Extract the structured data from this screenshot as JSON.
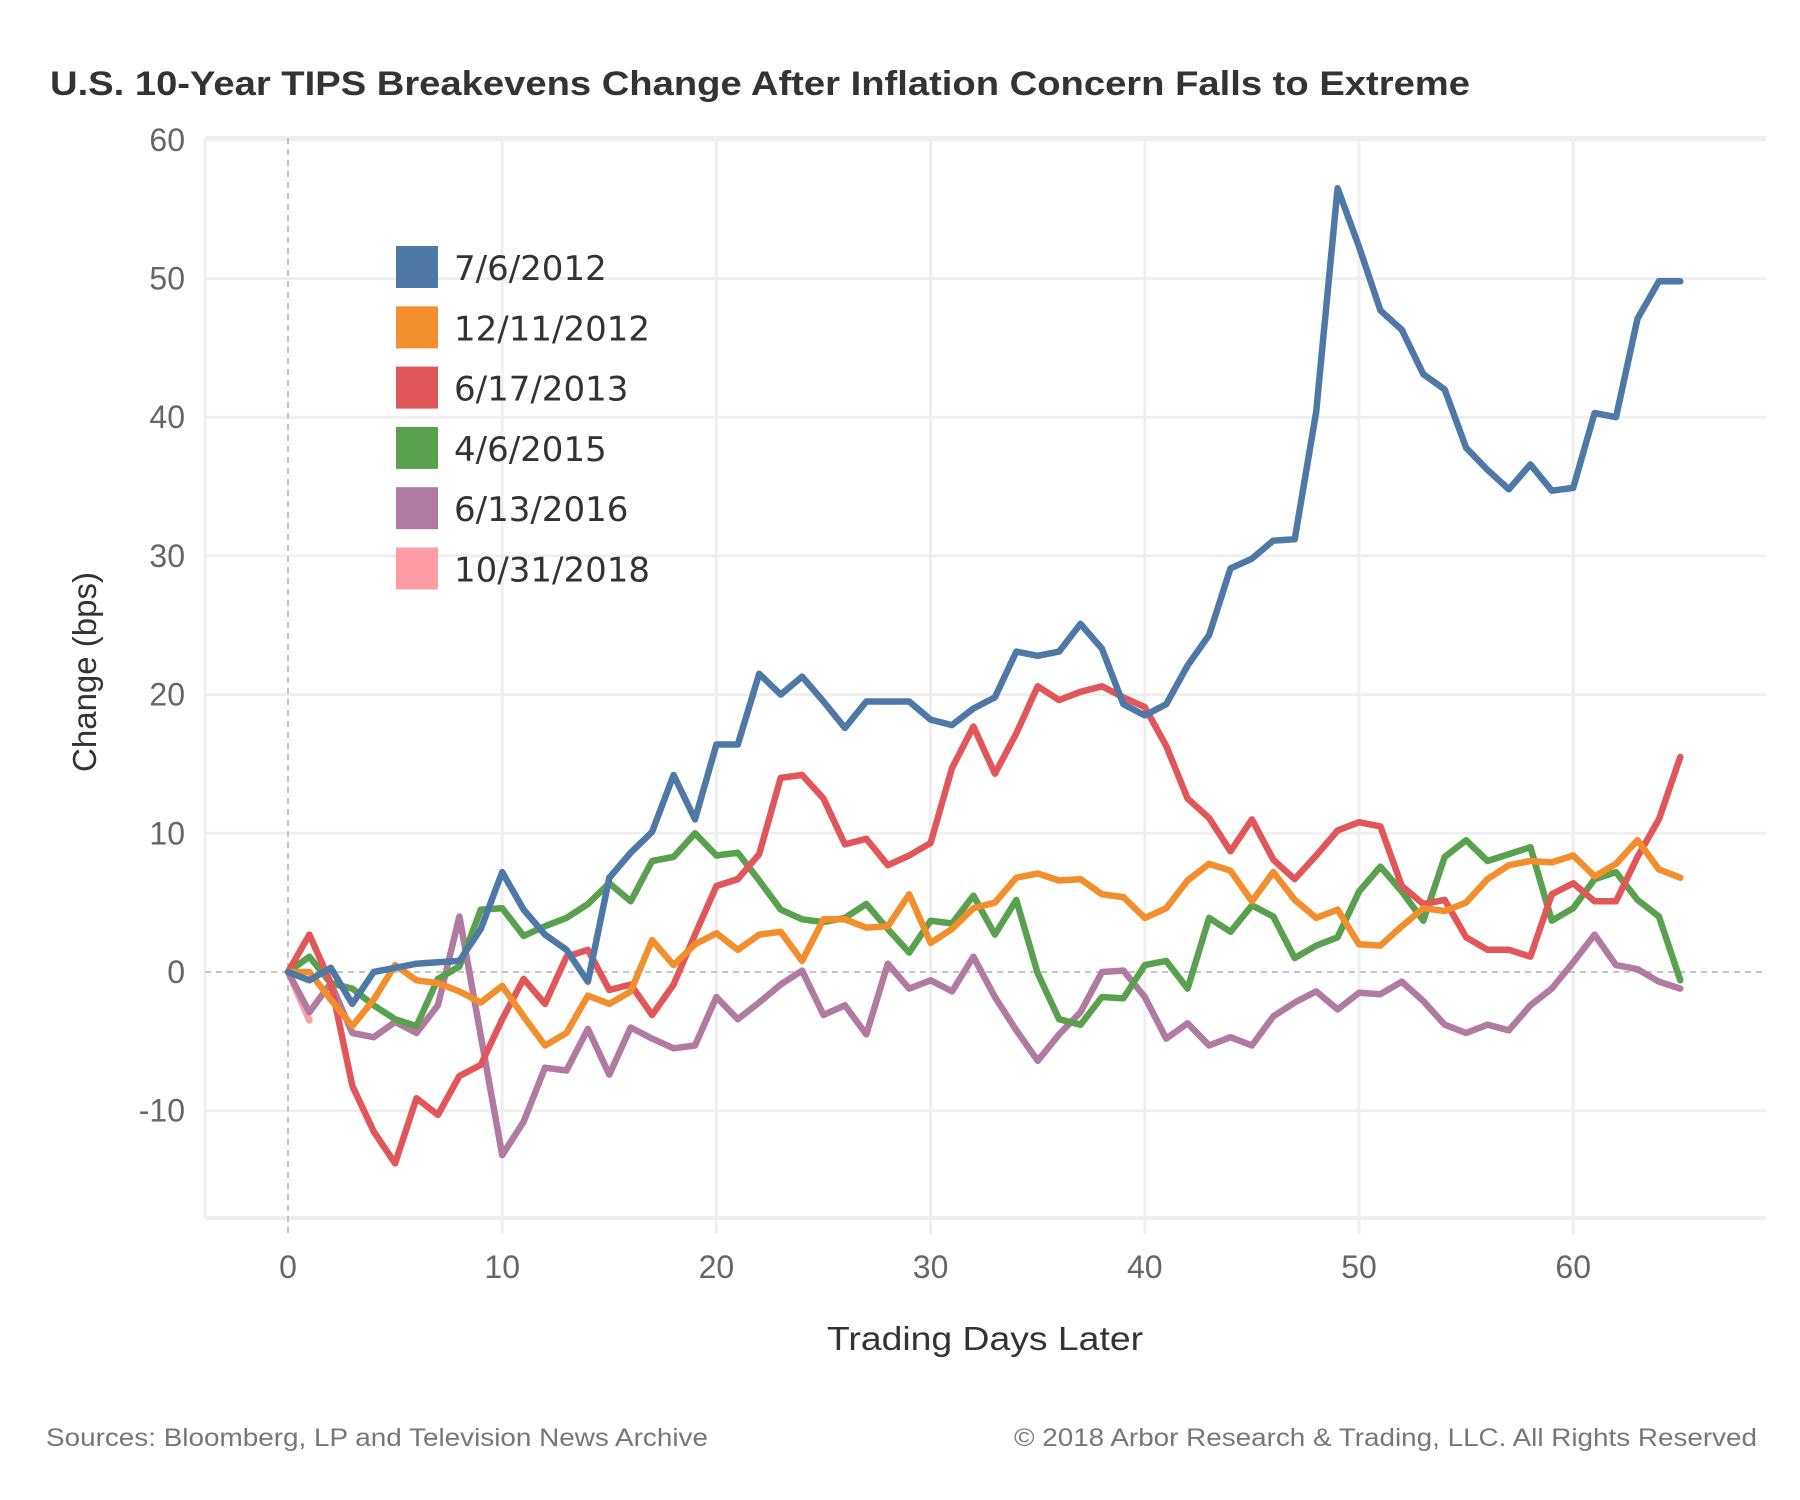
{
  "chart_data": {
    "type": "line",
    "title": "U.S. 10-Year TIPS Breakevens Change After Inflation Concern Falls to Extreme",
    "xlabel": "Trading Days Later",
    "ylabel": "Change (bps)",
    "xlim": [
      -4,
      69
    ],
    "ylim": [
      -17.7,
      60.2
    ],
    "xticks": [
      0,
      10,
      20,
      30,
      40,
      50,
      60
    ],
    "yticks": [
      -10,
      0,
      10,
      20,
      30,
      40,
      50,
      60
    ],
    "xtick_labels": [
      "0",
      "10",
      "20",
      "30",
      "40",
      "50",
      "60"
    ],
    "ytick_labels": [
      "-10",
      "0",
      "10",
      "20",
      "30",
      "40",
      "50",
      "60"
    ],
    "grid": true,
    "reference_lines": {
      "x": 0,
      "y": 0,
      "style": "dashed"
    },
    "legend_position": "top-left",
    "series": [
      {
        "name": "7/6/2012",
        "color": "#4e79a7",
        "x_start": 0,
        "values": [
          0,
          -0.6,
          0.3,
          -2.3,
          0,
          0.3,
          0.6,
          0.7,
          0.8,
          3.1,
          7.2,
          4.5,
          2.7,
          1.6,
          -0.7,
          6.8,
          8.6,
          10.1,
          14.2,
          11.0,
          16.4,
          16.4,
          21.5,
          20.0,
          21.3,
          19.5,
          17.6,
          19.5,
          19.5,
          19.5,
          18.2,
          17.8,
          19.0,
          19.8,
          23.1,
          22.8,
          23.1,
          25.1,
          23.3,
          19.3,
          18.5,
          19.3,
          22.1,
          24.3,
          29.1,
          29.8,
          31.1,
          31.2,
          40.4,
          56.5,
          52.3,
          47.7,
          46.3,
          43.1,
          42.0,
          37.8,
          36.2,
          34.8,
          36.6,
          34.7,
          34.9,
          40.3,
          40.0,
          47.1,
          49.8,
          49.8
        ]
      },
      {
        "name": "12/11/2012",
        "color": "#f28e2b",
        "x_start": 0,
        "values": [
          0,
          0,
          -2.0,
          -3.9,
          -2.0,
          0.5,
          -0.6,
          -0.8,
          -1.4,
          -2.2,
          -1.0,
          -3.2,
          -5.3,
          -4.4,
          -1.7,
          -2.3,
          -1.4,
          2.3,
          0.5,
          2.0,
          2.8,
          1.6,
          2.7,
          2.9,
          0.8,
          3.8,
          3.8,
          3.2,
          3.3,
          5.6,
          2.1,
          3.1,
          4.6,
          5.0,
          6.8,
          7.1,
          6.6,
          6.7,
          5.6,
          5.4,
          3.9,
          4.6,
          6.6,
          7.8,
          7.3,
          5.1,
          7.2,
          5.2,
          3.9,
          4.5,
          2.0,
          1.9,
          3.3,
          4.6,
          4.4,
          5.0,
          6.7,
          7.7,
          8.0,
          7.9,
          8.4,
          6.9,
          7.8,
          9.5,
          7.4,
          6.8
        ]
      },
      {
        "name": "6/17/2013",
        "color": "#e15759",
        "x_start": 0,
        "values": [
          0,
          2.7,
          -0.8,
          -8.2,
          -11.5,
          -13.8,
          -9.1,
          -10.3,
          -7.5,
          -6.7,
          -3.4,
          -0.5,
          -2.3,
          1.1,
          1.6,
          -1.3,
          -0.9,
          -3.1,
          -0.9,
          2.7,
          6.2,
          6.7,
          8.5,
          14.0,
          14.2,
          12.5,
          9.2,
          9.6,
          7.7,
          8.4,
          9.3,
          14.7,
          17.7,
          14.3,
          17.2,
          20.6,
          19.6,
          20.2,
          20.6,
          19.8,
          19.1,
          16.3,
          12.5,
          11.1,
          8.7,
          11.0,
          8.1,
          6.7,
          8.4,
          10.2,
          10.8,
          10.5,
          6.2,
          4.9,
          5.2,
          2.5,
          1.6,
          1.6,
          1.1,
          5.6,
          6.4,
          5.1,
          5.1,
          8.3,
          11.0,
          15.5
        ]
      },
      {
        "name": "4/6/2015",
        "color": "#59a14f",
        "x_start": 0,
        "values": [
          0,
          1.1,
          -0.8,
          -1.2,
          -2.4,
          -3.4,
          -3.9,
          -0.5,
          0.4,
          4.5,
          4.6,
          2.6,
          3.3,
          3.9,
          4.9,
          6.4,
          5.1,
          8.0,
          8.3,
          10.0,
          8.4,
          8.6,
          6.6,
          4.5,
          3.8,
          3.6,
          3.9,
          4.9,
          3.1,
          1.4,
          3.7,
          3.5,
          5.5,
          2.7,
          5.2,
          -0.1,
          -3.4,
          -3.8,
          -1.8,
          -1.9,
          0.5,
          0.8,
          -1.2,
          3.9,
          2.9,
          4.8,
          4.0,
          1.0,
          1.9,
          2.5,
          5.8,
          7.6,
          5.8,
          3.7,
          8.3,
          9.5,
          8.0,
          8.5,
          9.0,
          3.7,
          4.6,
          6.7,
          7.2,
          5.2,
          4.0,
          -0.6
        ]
      },
      {
        "name": "6/13/2016",
        "color": "#b07aa1",
        "x_start": 0,
        "values": [
          0,
          -2.9,
          -0.8,
          -4.4,
          -4.7,
          -3.6,
          -4.4,
          -2.4,
          4.0,
          -4.6,
          -13.2,
          -10.8,
          -6.9,
          -7.1,
          -4.1,
          -7.4,
          -4.0,
          -4.8,
          -5.5,
          -5.3,
          -1.8,
          -3.4,
          -2.2,
          -0.9,
          0.1,
          -3.1,
          -2.4,
          -4.5,
          0.6,
          -1.2,
          -0.6,
          -1.4,
          1.1,
          -1.8,
          -4.2,
          -6.4,
          -4.5,
          -2.9,
          0.0,
          0.1,
          -1.8,
          -4.8,
          -3.7,
          -5.3,
          -4.7,
          -5.3,
          -3.2,
          -2.2,
          -1.4,
          -2.7,
          -1.5,
          -1.6,
          -0.7,
          -2.1,
          -3.8,
          -4.4,
          -3.8,
          -4.2,
          -2.4,
          -1.2,
          0.7,
          2.7,
          0.5,
          0.2,
          -0.7,
          -1.2
        ]
      },
      {
        "name": "10/31/2018",
        "color": "#ff9da7",
        "x_start": 0,
        "values": [
          0,
          -3.5
        ]
      }
    ]
  },
  "footer": {
    "source": "Sources: Bloomberg, LP and Television News Archive",
    "copyright": "© 2018 Arbor Research & Trading, LLC. All Rights Reserved"
  }
}
